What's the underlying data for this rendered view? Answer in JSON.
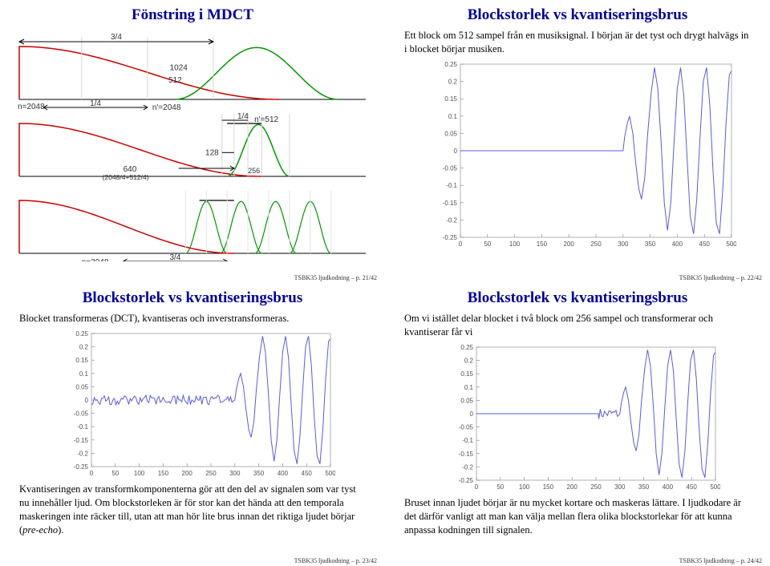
{
  "footer_prefix": "TSBK35 ljudkodning – p.",
  "tl": {
    "title": "Fönstring i MDCT",
    "footer_page": "21/42",
    "colors": {
      "red": "#cc0000",
      "green": "#009900",
      "black": "#000000",
      "grid": "#b0b0b0"
    },
    "ann": {
      "n2048_top": "n=2048",
      "frac34": "3/4",
      "v1024": "1024",
      "v512": "512",
      "frac14": "1/4",
      "np2048": "n'=2048",
      "frac14_mid": "1/4",
      "np512": "n'=512",
      "v128": "128",
      "line640": "640",
      "line640_sub": "(2048/4+512/4)",
      "v256": "256",
      "n2048_bot": "n=2048",
      "frac34_bot": "3/4"
    }
  },
  "tr": {
    "title": "Blockstorlek vs kvantiseringsbrus",
    "para": "Ett block om 512 sampel från en musiksignal. I början är det tyst och drygt halvägs in i blocket börjar musiken.",
    "footer_page": "22/42",
    "chart": {
      "color": "#5a5ae6",
      "box_color": "#b0b0b0",
      "tick_color": "#808080",
      "xlim": [
        0,
        500
      ],
      "ylim": [
        -0.25,
        0.25
      ],
      "yticks": [
        -0.25,
        -0.2,
        -0.15,
        -0.1,
        -0.05,
        0,
        0.05,
        0.1,
        0.15,
        0.2,
        0.25
      ],
      "xticks": [
        0,
        50,
        100,
        150,
        200,
        250,
        300,
        350,
        400,
        450,
        500
      ],
      "flat_until": 295,
      "music_start": 300,
      "music": [
        [
          300,
          0.0
        ],
        [
          303,
          0.04
        ],
        [
          308,
          0.08
        ],
        [
          312,
          0.1
        ],
        [
          318,
          0.05
        ],
        [
          323,
          -0.03
        ],
        [
          329,
          -0.11
        ],
        [
          334,
          -0.14
        ],
        [
          340,
          -0.08
        ],
        [
          345,
          0.04
        ],
        [
          352,
          0.17
        ],
        [
          358,
          0.24
        ],
        [
          364,
          0.18
        ],
        [
          370,
          0.03
        ],
        [
          376,
          -0.15
        ],
        [
          382,
          -0.23
        ],
        [
          388,
          -0.15
        ],
        [
          394,
          0.02
        ],
        [
          400,
          0.18
        ],
        [
          406,
          0.24
        ],
        [
          412,
          0.16
        ],
        [
          418,
          -0.02
        ],
        [
          424,
          -0.19
        ],
        [
          430,
          -0.24
        ],
        [
          436,
          -0.14
        ],
        [
          442,
          0.04
        ],
        [
          448,
          0.2
        ],
        [
          454,
          0.24
        ],
        [
          460,
          0.13
        ],
        [
          466,
          -0.06
        ],
        [
          472,
          -0.21
        ],
        [
          478,
          -0.24
        ],
        [
          484,
          -0.11
        ],
        [
          490,
          0.08
        ],
        [
          496,
          0.22
        ],
        [
          500,
          0.23
        ]
      ]
    }
  },
  "bl": {
    "title": "Blockstorlek vs kvantiseringsbrus",
    "para1": "Blocket transformeras (DCT), kvantiseras och inverstransformeras.",
    "para2_html": "Kvantiseringen av transformkomponenterna gör att den del av signalen som var tyst nu innehåller ljud. Om blockstorleken är för stor kan det hända att den temporala maskeringen inte räcker till, utan att man hör lite brus innan det riktiga ljudet börjar (<em>pre-echo</em>).",
    "footer_page": "23/42",
    "chart": {
      "color": "#5a5ae6",
      "box_color": "#b0b0b0",
      "xlim": [
        0,
        500
      ],
      "ylim": [
        -0.25,
        0.25
      ],
      "yticks": [
        -0.25,
        -0.2,
        -0.15,
        -0.1,
        -0.05,
        0,
        0.05,
        0.1,
        0.15,
        0.2,
        0.25
      ],
      "xticks": [
        0,
        50,
        100,
        150,
        200,
        250,
        300,
        350,
        400,
        450,
        500
      ],
      "noise_amp": 0.018,
      "music_start": 300,
      "music": [
        [
          300,
          0.0
        ],
        [
          303,
          0.04
        ],
        [
          308,
          0.08
        ],
        [
          312,
          0.1
        ],
        [
          318,
          0.05
        ],
        [
          323,
          -0.03
        ],
        [
          329,
          -0.11
        ],
        [
          334,
          -0.14
        ],
        [
          340,
          -0.08
        ],
        [
          345,
          0.04
        ],
        [
          352,
          0.17
        ],
        [
          358,
          0.24
        ],
        [
          364,
          0.18
        ],
        [
          370,
          0.03
        ],
        [
          376,
          -0.15
        ],
        [
          382,
          -0.23
        ],
        [
          388,
          -0.15
        ],
        [
          394,
          0.02
        ],
        [
          400,
          0.18
        ],
        [
          406,
          0.24
        ],
        [
          412,
          0.16
        ],
        [
          418,
          -0.02
        ],
        [
          424,
          -0.19
        ],
        [
          430,
          -0.24
        ],
        [
          436,
          -0.14
        ],
        [
          442,
          0.04
        ],
        [
          448,
          0.2
        ],
        [
          454,
          0.24
        ],
        [
          460,
          0.13
        ],
        [
          466,
          -0.06
        ],
        [
          472,
          -0.21
        ],
        [
          478,
          -0.24
        ],
        [
          484,
          -0.11
        ],
        [
          490,
          0.08
        ],
        [
          496,
          0.22
        ],
        [
          500,
          0.23
        ]
      ]
    }
  },
  "br": {
    "title": "Blockstorlek vs kvantiseringsbrus",
    "para1": "Om vi istället delar blocket i två block om 256 sampel och transformerar och kvantiserar får vi",
    "para2": "Bruset innan ljudet börjar är nu mycket kortare och maskeras lättare. I ljudkodare är det därför vanligt att man kan välja mellan flera olika blockstorlekar för att kunna anpassa kodningen till signalen.",
    "footer_page": "24/42",
    "chart": {
      "color": "#5a5ae6",
      "box_color": "#b0b0b0",
      "xlim": [
        0,
        500
      ],
      "ylim": [
        -0.25,
        0.25
      ],
      "yticks": [
        -0.25,
        -0.2,
        -0.15,
        -0.1,
        -0.05,
        0,
        0.05,
        0.1,
        0.15,
        0.2,
        0.25
      ],
      "xticks": [
        0,
        50,
        100,
        150,
        200,
        250,
        300,
        350,
        400,
        450,
        500
      ],
      "flat_until": 255,
      "noise_from": 256,
      "noise_to": 300,
      "noise_amp": 0.02,
      "music_start": 300,
      "music": [
        [
          300,
          0.0
        ],
        [
          303,
          0.04
        ],
        [
          308,
          0.08
        ],
        [
          312,
          0.1
        ],
        [
          318,
          0.05
        ],
        [
          323,
          -0.03
        ],
        [
          329,
          -0.11
        ],
        [
          334,
          -0.14
        ],
        [
          340,
          -0.08
        ],
        [
          345,
          0.04
        ],
        [
          352,
          0.17
        ],
        [
          358,
          0.24
        ],
        [
          364,
          0.18
        ],
        [
          370,
          0.03
        ],
        [
          376,
          -0.15
        ],
        [
          382,
          -0.23
        ],
        [
          388,
          -0.15
        ],
        [
          394,
          0.02
        ],
        [
          400,
          0.18
        ],
        [
          406,
          0.24
        ],
        [
          412,
          0.16
        ],
        [
          418,
          -0.02
        ],
        [
          424,
          -0.19
        ],
        [
          430,
          -0.24
        ],
        [
          436,
          -0.14
        ],
        [
          442,
          0.04
        ],
        [
          448,
          0.2
        ],
        [
          454,
          0.24
        ],
        [
          460,
          0.13
        ],
        [
          466,
          -0.06
        ],
        [
          472,
          -0.21
        ],
        [
          478,
          -0.24
        ],
        [
          484,
          -0.11
        ],
        [
          490,
          0.08
        ],
        [
          496,
          0.22
        ],
        [
          500,
          0.23
        ]
      ]
    }
  }
}
